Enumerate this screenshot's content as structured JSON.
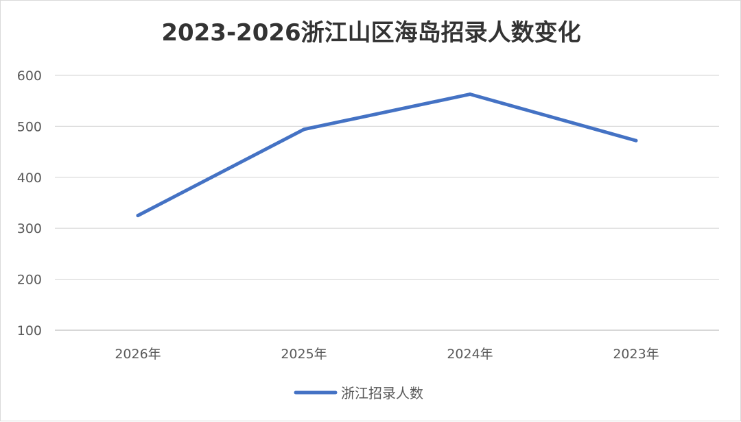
{
  "chart_data": {
    "type": "line",
    "title": "2023-2026浙江山区海岛招录人数变化",
    "categories": [
      "2026年",
      "2025年",
      "2024年",
      "2023年"
    ],
    "series": [
      {
        "name": "浙江招录人数",
        "values": [
          325,
          494,
          563,
          472
        ],
        "color": "#4472c4"
      }
    ],
    "ylim": [
      100,
      600
    ],
    "yticks": [
      100,
      200,
      300,
      400,
      500,
      600
    ],
    "grid": true,
    "legend_position": "bottom"
  }
}
